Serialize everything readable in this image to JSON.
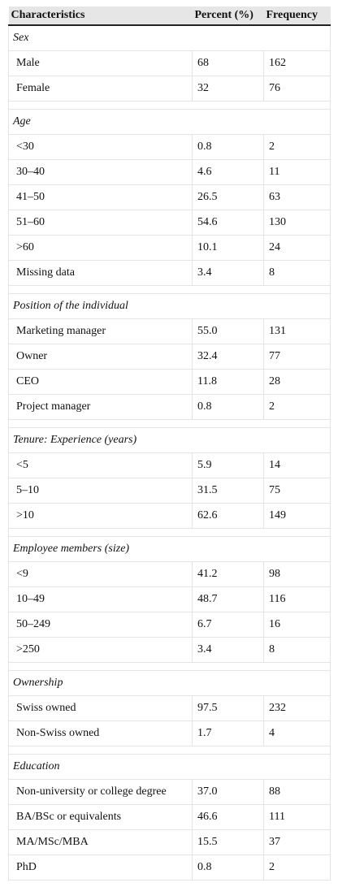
{
  "table": {
    "headers": [
      "Characteristics",
      "Percent (%)",
      "Frequency"
    ],
    "sections": [
      {
        "title": "Sex",
        "rows": [
          [
            "Male",
            "68",
            "162"
          ],
          [
            "Female",
            "32",
            "76"
          ]
        ]
      },
      {
        "title": "Age",
        "rows": [
          [
            "<30",
            "0.8",
            "2"
          ],
          [
            "30–40",
            "4.6",
            "11"
          ],
          [
            "41–50",
            "26.5",
            "63"
          ],
          [
            "51–60",
            "54.6",
            "130"
          ],
          [
            ">60",
            "10.1",
            "24"
          ],
          [
            "Missing data",
            "3.4",
            "8"
          ]
        ]
      },
      {
        "title": "Position of the individual",
        "rows": [
          [
            "Marketing manager",
            "55.0",
            "131"
          ],
          [
            "Owner",
            "32.4",
            "77"
          ],
          [
            "CEO",
            "11.8",
            "28"
          ],
          [
            "Project manager",
            "0.8",
            "2"
          ]
        ]
      },
      {
        "title_parts": [
          "Tenure",
          ": ",
          "Experience (years)"
        ],
        "rows": [
          [
            "<5",
            "5.9",
            "14"
          ],
          [
            "5–10",
            "31.5",
            "75"
          ],
          [
            ">10",
            "62.6",
            "149"
          ]
        ]
      },
      {
        "title_parts": [
          "Employee members (",
          "size",
          ")"
        ],
        "rows": [
          [
            "<9",
            "41.2",
            "98"
          ],
          [
            "10–49",
            "48.7",
            "116"
          ],
          [
            "50–249",
            "6.7",
            "16"
          ],
          [
            ">250",
            "3.4",
            "8"
          ]
        ]
      },
      {
        "title": "Ownership",
        "rows": [
          [
            "Swiss owned",
            "97.5",
            "232"
          ],
          [
            "Non-Swiss owned",
            "1.7",
            "4"
          ]
        ]
      },
      {
        "title": "Education",
        "rows": [
          [
            "Non-university or college degree",
            "37.0",
            "88"
          ],
          [
            "BA/BSc or equivalents",
            "46.6",
            "111"
          ],
          [
            "MA/MSc/MBA",
            "15.5",
            "37"
          ],
          [
            "PhD",
            "0.8",
            "2"
          ]
        ]
      }
    ]
  }
}
